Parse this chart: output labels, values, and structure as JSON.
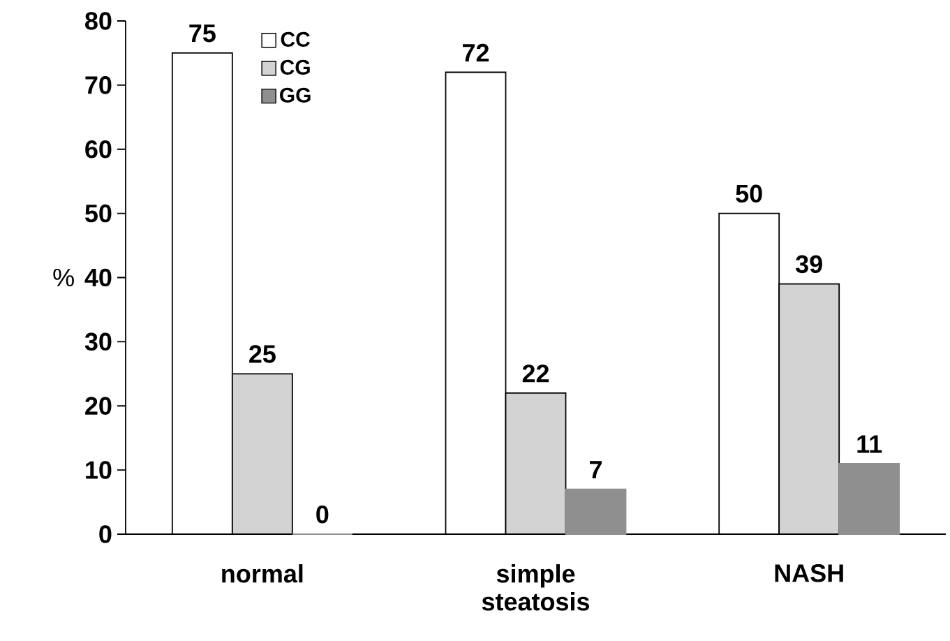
{
  "chart_data": {
    "type": "bar",
    "ylabel": "%",
    "categories": [
      "normal",
      "simple steatosis",
      "NASH"
    ],
    "series": [
      {
        "name": "CC",
        "color": "#ffffff",
        "values": [
          75,
          72,
          50
        ]
      },
      {
        "name": "CG",
        "color": "#d3d3d3",
        "values": [
          25,
          22,
          39
        ]
      },
      {
        "name": "GG",
        "color": "#8f8f8f",
        "values": [
          0,
          7,
          11
        ]
      }
    ],
    "ylim": [
      0,
      80
    ],
    "yticks": [
      0,
      10,
      20,
      30,
      40,
      50,
      60,
      70,
      80
    ],
    "data_labels": true,
    "legend": "top left",
    "grid": false
  }
}
